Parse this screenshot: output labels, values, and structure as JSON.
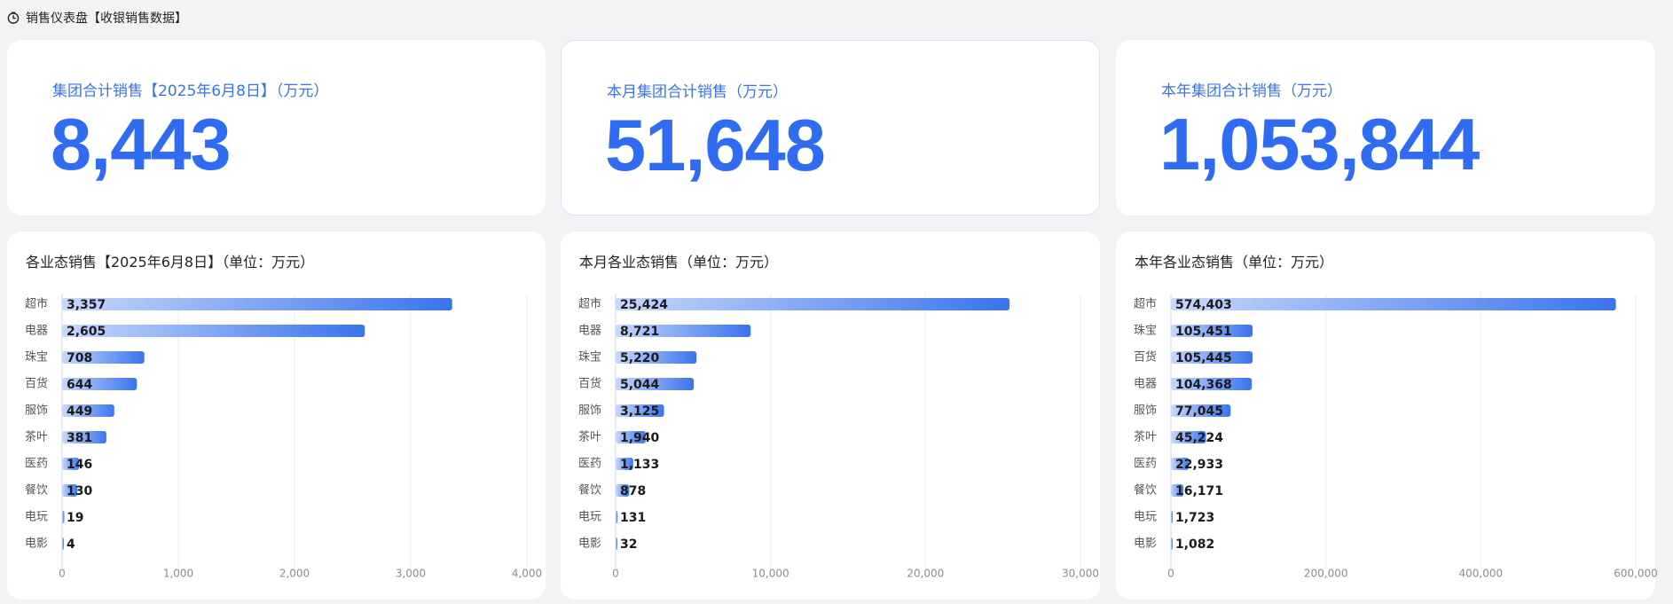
{
  "header": {
    "title": "销售仪表盘【收银销售数据】",
    "icon": "clock-icon"
  },
  "kpis": [
    {
      "title": "集团合计销售【2025年6月8日】（万元）",
      "value": "8,443"
    },
    {
      "title": "本月集团合计销售（万元）",
      "value": "51,648"
    },
    {
      "title": "本年集团合计销售（万元）",
      "value": "1,053,844"
    }
  ],
  "colors": {
    "accent": "#2f6cf1",
    "bar_light": "#c7d8fb",
    "bar_dark": "#3a74ec"
  },
  "chart_data": [
    {
      "type": "bar",
      "orientation": "horizontal",
      "title": "各业态销售【2025年6月8日】（单位：万元）",
      "categories": [
        "超市",
        "电器",
        "珠宝",
        "百货",
        "服饰",
        "茶叶",
        "医药",
        "餐饮",
        "电玩",
        "电影"
      ],
      "values": [
        3357,
        2605,
        708,
        644,
        449,
        381,
        146,
        130,
        19,
        4
      ],
      "labels": [
        "3,357",
        "2,605",
        "708",
        "644",
        "449",
        "381",
        "146",
        "130",
        "19",
        "4"
      ],
      "xlim": [
        0,
        4000
      ],
      "ticks": [
        0,
        1000,
        2000,
        3000,
        4000
      ],
      "tick_labels": [
        "0",
        "1,000",
        "2,000",
        "3,000",
        "4,000"
      ],
      "grid": true
    },
    {
      "type": "bar",
      "orientation": "horizontal",
      "title": "本月各业态销售（单位：万元）",
      "categories": [
        "超市",
        "电器",
        "珠宝",
        "百货",
        "服饰",
        "茶叶",
        "医药",
        "餐饮",
        "电玩",
        "电影"
      ],
      "values": [
        25424,
        8721,
        5220,
        5044,
        3125,
        1940,
        1133,
        878,
        131,
        32
      ],
      "labels": [
        "25,424",
        "8,721",
        "5,220",
        "5,044",
        "3,125",
        "1,940",
        "1,133",
        "878",
        "131",
        "32"
      ],
      "xlim": [
        0,
        30000
      ],
      "ticks": [
        0,
        10000,
        20000,
        30000
      ],
      "tick_labels": [
        "0",
        "10,000",
        "20,000",
        "30,000"
      ],
      "grid": true
    },
    {
      "type": "bar",
      "orientation": "horizontal",
      "title": "本年各业态销售（单位：万元）",
      "categories": [
        "超市",
        "珠宝",
        "百货",
        "电器",
        "服饰",
        "茶叶",
        "医药",
        "餐饮",
        "电玩",
        "电影"
      ],
      "values": [
        574403,
        105451,
        105445,
        104368,
        77045,
        45224,
        22933,
        16171,
        1723,
        1082
      ],
      "labels": [
        "574,403",
        "105,451",
        "105,445",
        "104,368",
        "77,045",
        "45,224",
        "22,933",
        "16,171",
        "1,723",
        "1,082"
      ],
      "xlim": [
        0,
        600000
      ],
      "ticks": [
        0,
        200000,
        400000,
        600000
      ],
      "tick_labels": [
        "0",
        "200,000",
        "400,000",
        "600,000"
      ],
      "grid": true
    }
  ]
}
